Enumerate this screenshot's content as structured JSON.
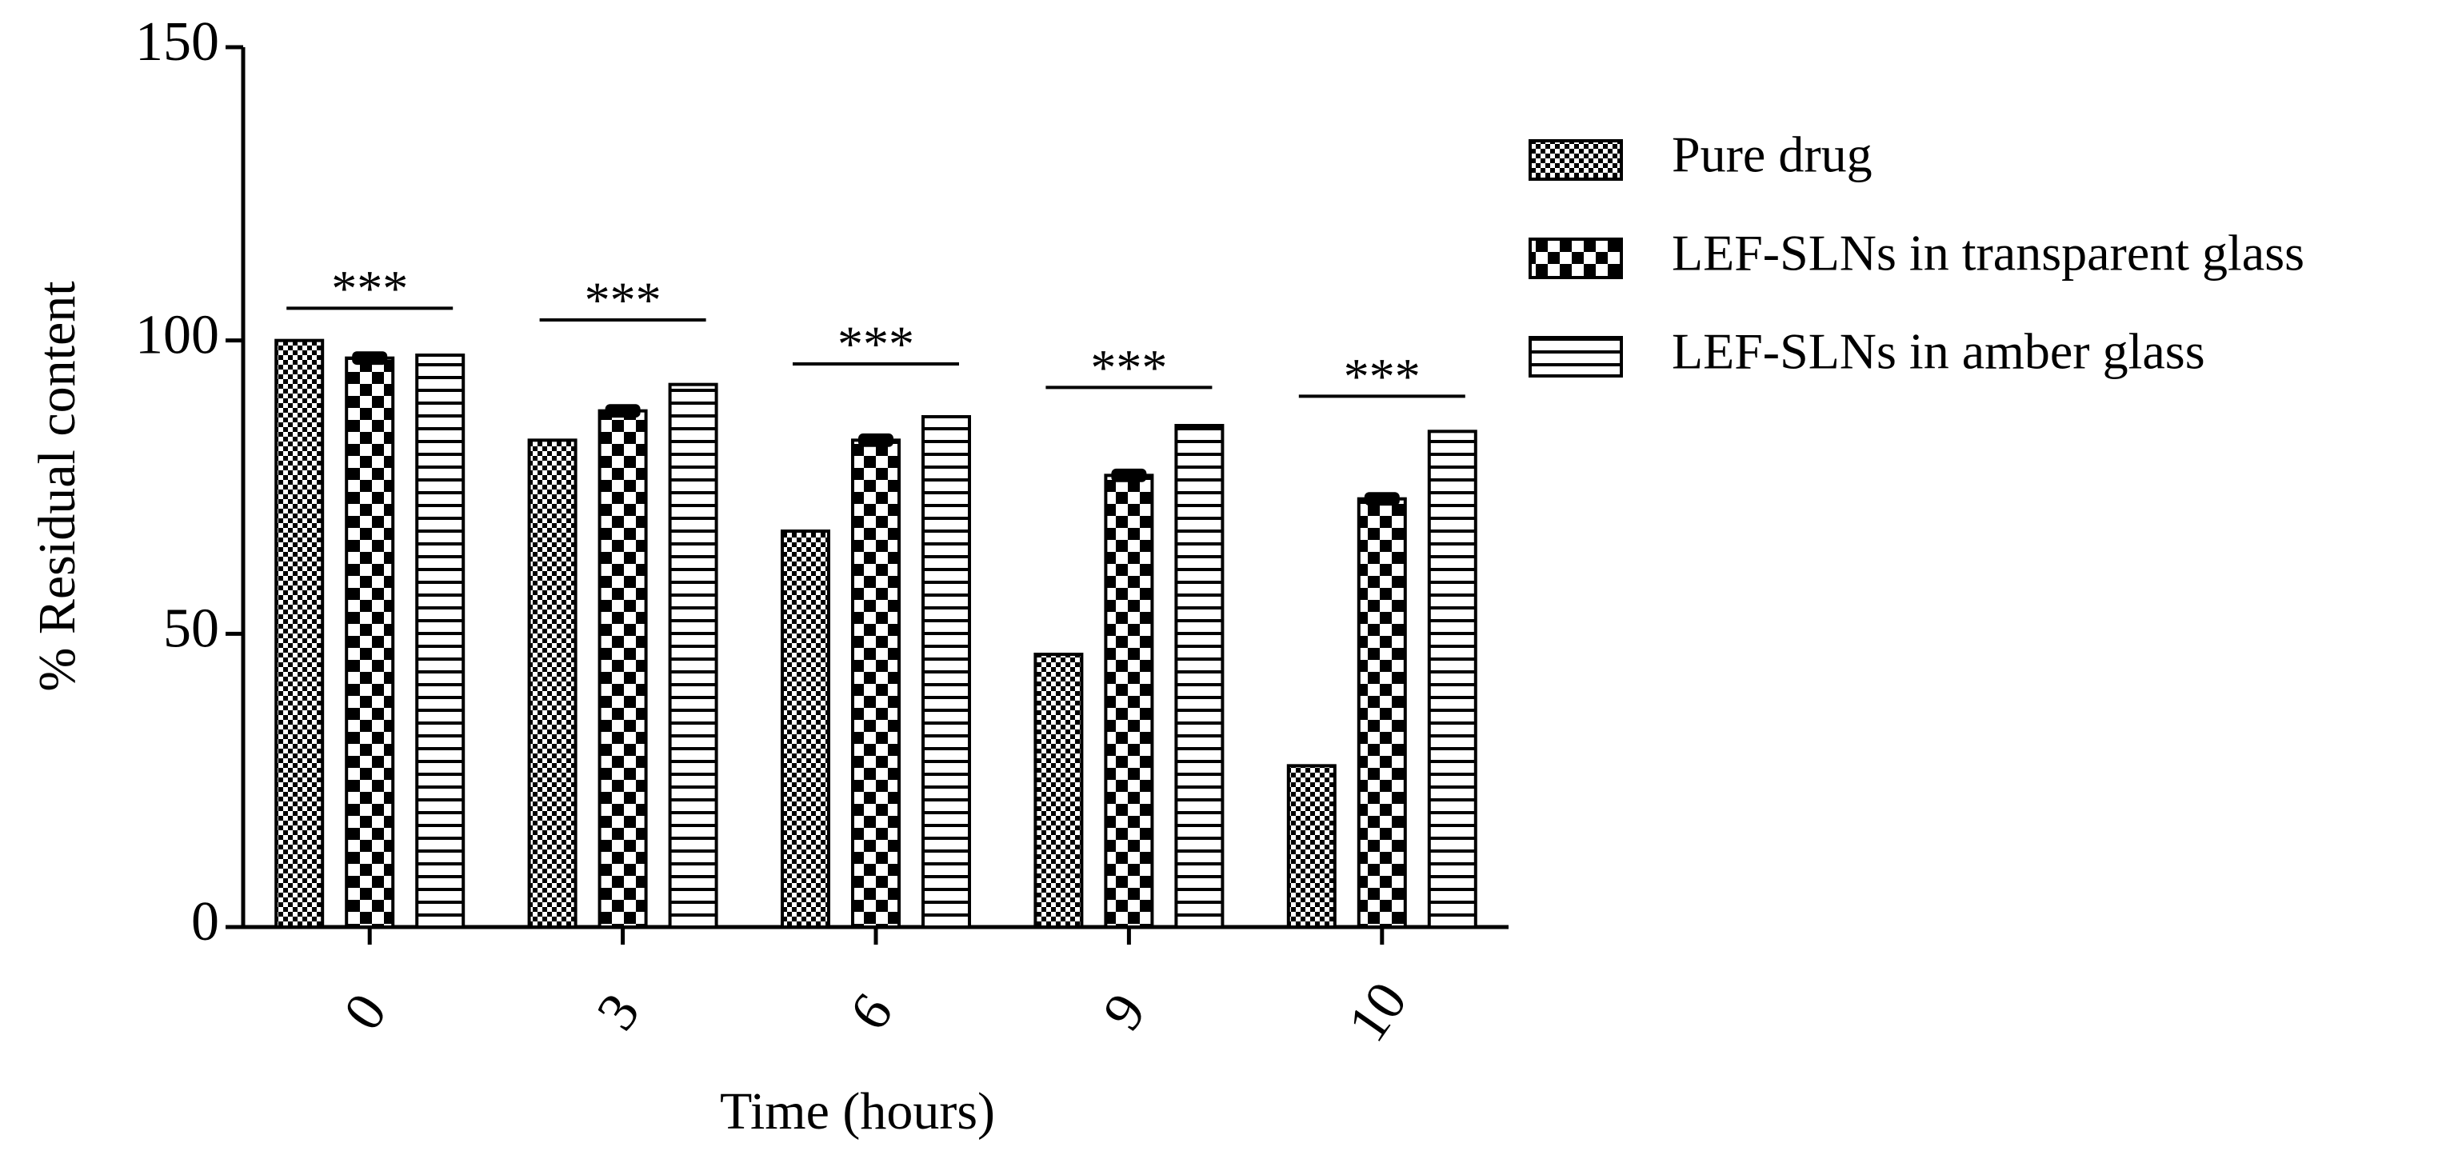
{
  "chart_data": {
    "type": "bar",
    "categories": [
      "0",
      "3",
      "6",
      "9",
      "10"
    ],
    "x_label": "Time (hours)",
    "y_label": "% Residual content",
    "series": [
      {
        "name": "Pure drug",
        "color": "#000000",
        "values": [
          100,
          83,
          67.5,
          46.5,
          27.5
        ]
      },
      {
        "name": "LEF-SLNs in transparent glass",
        "color": "#000000",
        "values": [
          97,
          88,
          83,
          77,
          73
        ],
        "errors": [
          0.6,
          0.6,
          0.6,
          0.6,
          0.6
        ]
      },
      {
        "name": "LEF-SLNs in amber glass",
        "color": "#000000",
        "values": [
          97.5,
          92.5,
          87,
          85.5,
          84.5
        ]
      }
    ],
    "annotations": [
      {
        "text": "***",
        "value": 105.5
      },
      {
        "text": "***",
        "value": 103.5
      },
      {
        "text": "***",
        "value": 96
      },
      {
        "text": "***",
        "value": 92
      },
      {
        "text": "***",
        "value": 90.5
      }
    ],
    "ylim": [
      0,
      150
    ],
    "yticks": [
      0,
      50,
      100,
      150
    ],
    "legend": "right"
  }
}
